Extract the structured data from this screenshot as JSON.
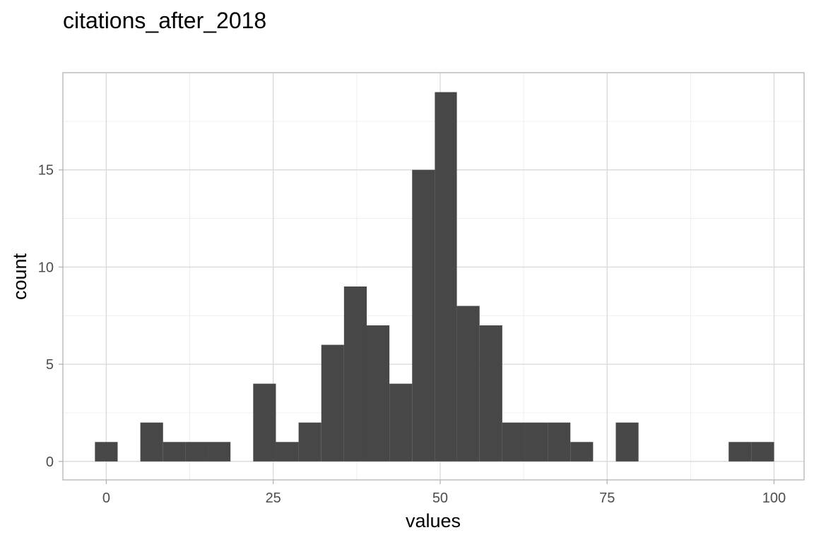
{
  "chart_data": {
    "type": "bar",
    "title": "citations_after_2018",
    "xlabel": "values",
    "ylabel": "count",
    "bar_color": "#474747",
    "grid": true,
    "xlim": [
      -6.5,
      104.5
    ],
    "ylim": [
      -0.95,
      20.0
    ],
    "xticks": [
      0,
      25,
      50,
      75,
      100
    ],
    "yticks": [
      0,
      5,
      10,
      15
    ],
    "xtick_labels": [
      "0",
      "25",
      "50",
      "75",
      "100"
    ],
    "ytick_labels": [
      "0",
      "5",
      "10",
      "15"
    ],
    "bins": [
      {
        "x0": -1.7,
        "x1": 1.7,
        "count": 1
      },
      {
        "x0": 1.7,
        "x1": 5.1,
        "count": 0
      },
      {
        "x0": 5.1,
        "x1": 8.5,
        "count": 2
      },
      {
        "x0": 8.5,
        "x1": 11.9,
        "count": 1
      },
      {
        "x0": 11.9,
        "x1": 15.3,
        "count": 1
      },
      {
        "x0": 15.3,
        "x1": 18.6,
        "count": 1
      },
      {
        "x0": 18.6,
        "x1": 22.0,
        "count": 0
      },
      {
        "x0": 22.0,
        "x1": 25.4,
        "count": 4
      },
      {
        "x0": 25.4,
        "x1": 28.8,
        "count": 1
      },
      {
        "x0": 28.8,
        "x1": 32.2,
        "count": 2
      },
      {
        "x0": 32.2,
        "x1": 35.6,
        "count": 6
      },
      {
        "x0": 35.6,
        "x1": 39.0,
        "count": 9
      },
      {
        "x0": 39.0,
        "x1": 42.4,
        "count": 7
      },
      {
        "x0": 42.4,
        "x1": 45.8,
        "count": 4
      },
      {
        "x0": 45.8,
        "x1": 49.2,
        "count": 15
      },
      {
        "x0": 49.2,
        "x1": 52.5,
        "count": 19
      },
      {
        "x0": 52.5,
        "x1": 55.9,
        "count": 8
      },
      {
        "x0": 55.9,
        "x1": 59.3,
        "count": 7
      },
      {
        "x0": 59.3,
        "x1": 62.7,
        "count": 2
      },
      {
        "x0": 62.7,
        "x1": 66.1,
        "count": 2
      },
      {
        "x0": 66.1,
        "x1": 69.5,
        "count": 2
      },
      {
        "x0": 69.5,
        "x1": 72.9,
        "count": 1
      },
      {
        "x0": 72.9,
        "x1": 76.3,
        "count": 0
      },
      {
        "x0": 76.3,
        "x1": 79.7,
        "count": 2
      },
      {
        "x0": 79.7,
        "x1": 83.1,
        "count": 0
      },
      {
        "x0": 83.1,
        "x1": 86.4,
        "count": 0
      },
      {
        "x0": 86.4,
        "x1": 89.8,
        "count": 0
      },
      {
        "x0": 89.8,
        "x1": 93.2,
        "count": 0
      },
      {
        "x0": 93.2,
        "x1": 96.6,
        "count": 1
      },
      {
        "x0": 96.6,
        "x1": 100.0,
        "count": 1
      }
    ]
  }
}
